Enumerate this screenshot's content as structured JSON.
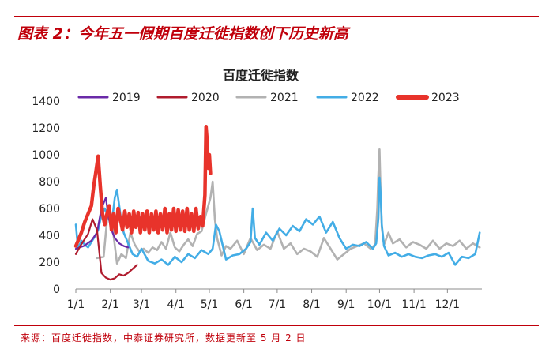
{
  "figure": {
    "title": "图表 2：今年五一假期百度迁徙指数创下历史新高",
    "source": "来源：百度迁徙指数，中泰证券研究所，数据更新至 5 月 2 日"
  },
  "colors": {
    "accent": "#c0000b",
    "s2019": "#6a2aa8",
    "s2020": "#b01c2e",
    "s2021": "#b2b2b2",
    "s2022": "#43ade6",
    "s2023": "#e8332b"
  },
  "chart_data": {
    "type": "line",
    "title": "百度迁徙指数",
    "xlabel": "",
    "ylabel": "",
    "ylim": [
      0,
      1400
    ],
    "yticks": [
      0,
      200,
      400,
      600,
      800,
      1000,
      1200,
      1400
    ],
    "xlim": [
      1,
      366
    ],
    "xticks": [
      {
        "label": "1/1",
        "day": 1
      },
      {
        "label": "2/1",
        "day": 32
      },
      {
        "label": "3/1",
        "day": 60
      },
      {
        "label": "4/1",
        "day": 91
      },
      {
        "label": "5/1",
        "day": 121
      },
      {
        "label": "6/1",
        "day": 152
      },
      {
        "label": "7/1",
        "day": 182
      },
      {
        "label": "8/1",
        "day": 213
      },
      {
        "label": "9/1",
        "day": 244
      },
      {
        "label": "10/1",
        "day": 274
      },
      {
        "label": "11/1",
        "day": 305
      },
      {
        "label": "12/1",
        "day": 335
      }
    ],
    "grid": false,
    "legend_position": "top",
    "series": [
      {
        "name": "2019",
        "x": [
          1,
          8,
          15,
          20,
          24,
          28,
          30,
          32,
          34,
          36,
          40,
          44,
          48
        ],
        "y": [
          300,
          320,
          360,
          420,
          600,
          680,
          560,
          470,
          420,
          380,
          340,
          320,
          310
        ]
      },
      {
        "name": "2020",
        "x": [
          1,
          5,
          8,
          12,
          16,
          20,
          24,
          28,
          32,
          36,
          40,
          44,
          48,
          52,
          56
        ],
        "y": [
          260,
          320,
          360,
          410,
          520,
          440,
          120,
          85,
          70,
          80,
          110,
          100,
          120,
          150,
          180
        ]
      },
      {
        "name": "2021",
        "x": [
          20,
          26,
          30,
          34,
          38,
          42,
          46,
          50,
          54,
          58,
          62,
          66,
          70,
          74,
          78,
          82,
          86,
          90,
          94,
          98,
          102,
          106,
          110,
          114,
          118,
          122,
          124,
          126,
          128,
          132,
          136,
          140,
          146,
          152,
          158,
          164,
          170,
          176,
          182,
          188,
          194,
          200,
          206,
          212,
          218,
          224,
          230,
          236,
          242,
          248,
          254,
          260,
          266,
          270,
          272,
          273,
          274,
          275,
          276,
          278,
          282,
          286,
          292,
          298,
          304,
          310,
          316,
          322,
          328,
          334,
          340,
          346,
          352,
          358,
          364
        ],
        "y": [
          230,
          240,
          600,
          460,
          190,
          260,
          230,
          420,
          330,
          280,
          300,
          270,
          310,
          290,
          350,
          300,
          420,
          310,
          280,
          330,
          370,
          320,
          410,
          430,
          560,
          680,
          800,
          520,
          380,
          250,
          320,
          300,
          360,
          260,
          380,
          290,
          330,
          300,
          430,
          300,
          340,
          260,
          300,
          280,
          240,
          380,
          300,
          220,
          260,
          300,
          320,
          340,
          300,
          330,
          600,
          850,
          1040,
          700,
          460,
          330,
          420,
          340,
          370,
          310,
          350,
          330,
          300,
          360,
          300,
          340,
          320,
          360,
          300,
          340,
          310
        ]
      },
      {
        "name": "2022",
        "x": [
          1,
          3,
          6,
          9,
          12,
          15,
          18,
          21,
          24,
          27,
          30,
          33,
          36,
          38,
          40,
          42,
          44,
          48,
          52,
          56,
          60,
          66,
          72,
          78,
          84,
          90,
          96,
          102,
          108,
          114,
          120,
          124,
          127,
          130,
          136,
          142,
          148,
          154,
          158,
          160,
          162,
          166,
          172,
          178,
          184,
          190,
          196,
          202,
          208,
          214,
          220,
          226,
          232,
          238,
          244,
          250,
          256,
          262,
          268,
          271,
          273,
          274,
          275,
          276,
          278,
          282,
          288,
          294,
          300,
          306,
          312,
          318,
          324,
          330,
          336,
          342,
          348,
          354,
          360,
          364
        ],
        "y": [
          480,
          300,
          360,
          330,
          310,
          350,
          390,
          440,
          550,
          600,
          540,
          470,
          680,
          740,
          620,
          500,
          420,
          340,
          260,
          240,
          300,
          210,
          190,
          220,
          180,
          240,
          200,
          260,
          230,
          290,
          260,
          300,
          480,
          430,
          220,
          250,
          260,
          300,
          350,
          600,
          380,
          330,
          420,
          360,
          450,
          400,
          470,
          430,
          520,
          480,
          540,
          420,
          500,
          380,
          300,
          330,
          320,
          350,
          300,
          340,
          530,
          830,
          700,
          480,
          320,
          250,
          270,
          240,
          260,
          240,
          230,
          250,
          260,
          240,
          270,
          180,
          240,
          230,
          260,
          420
        ]
      },
      {
        "name": "2023",
        "x": [
          1,
          3,
          6,
          9,
          12,
          15,
          17,
          19,
          21,
          23,
          25,
          27,
          29,
          31,
          33,
          35,
          37,
          39,
          41,
          43,
          45,
          47,
          49,
          51,
          53,
          55,
          57,
          59,
          61,
          63,
          65,
          67,
          69,
          71,
          73,
          75,
          77,
          79,
          81,
          83,
          85,
          87,
          89,
          91,
          93,
          95,
          97,
          99,
          101,
          103,
          105,
          107,
          109,
          111,
          113,
          115,
          117,
          118,
          119,
          120,
          121,
          122
        ],
        "y": [
          320,
          360,
          420,
          500,
          560,
          620,
          760,
          870,
          990,
          760,
          560,
          480,
          560,
          620,
          440,
          560,
          420,
          600,
          520,
          440,
          580,
          460,
          560,
          420,
          580,
          460,
          570,
          420,
          560,
          440,
          580,
          420,
          560,
          440,
          580,
          420,
          560,
          440,
          600,
          420,
          560,
          440,
          600,
          430,
          590,
          440,
          580,
          430,
          600,
          440,
          560,
          430,
          600,
          450,
          540,
          470,
          700,
          1210,
          1100,
          900,
          1000,
          860
        ]
      }
    ]
  }
}
